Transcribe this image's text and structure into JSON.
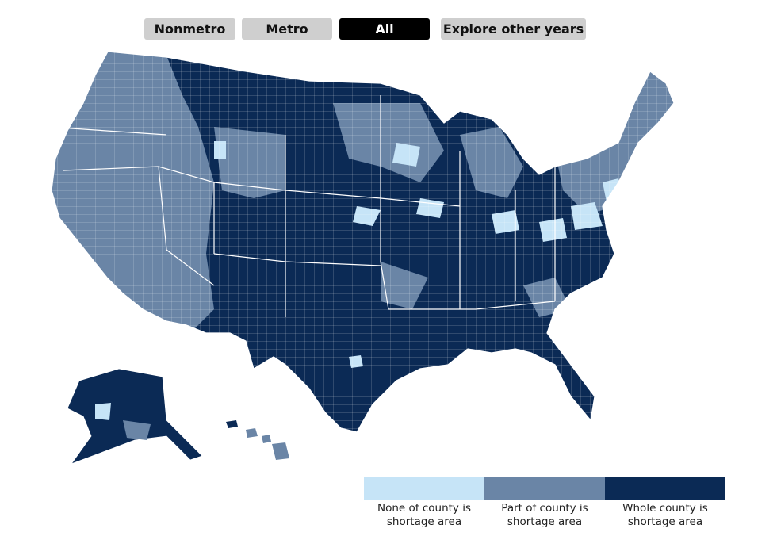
{
  "buttons": {
    "nonmetro": "Nonmetro",
    "metro": "Metro",
    "all": "All",
    "explore": "Explore other years",
    "active": "all"
  },
  "map": {
    "region": "United States (counties)",
    "categories": [
      {
        "key": "none",
        "color": "#c6e4f7"
      },
      {
        "key": "part",
        "color": "#6a85a6"
      },
      {
        "key": "whole",
        "color": "#0b2a55"
      }
    ]
  },
  "legend": {
    "items": [
      {
        "label": "None of county is\nshortage area",
        "color": "#c6e4f7"
      },
      {
        "label": "Part of county is\nshortage area",
        "color": "#6a85a6"
      },
      {
        "label": "Whole county is\nshortage area",
        "color": "#0b2a55"
      }
    ]
  }
}
